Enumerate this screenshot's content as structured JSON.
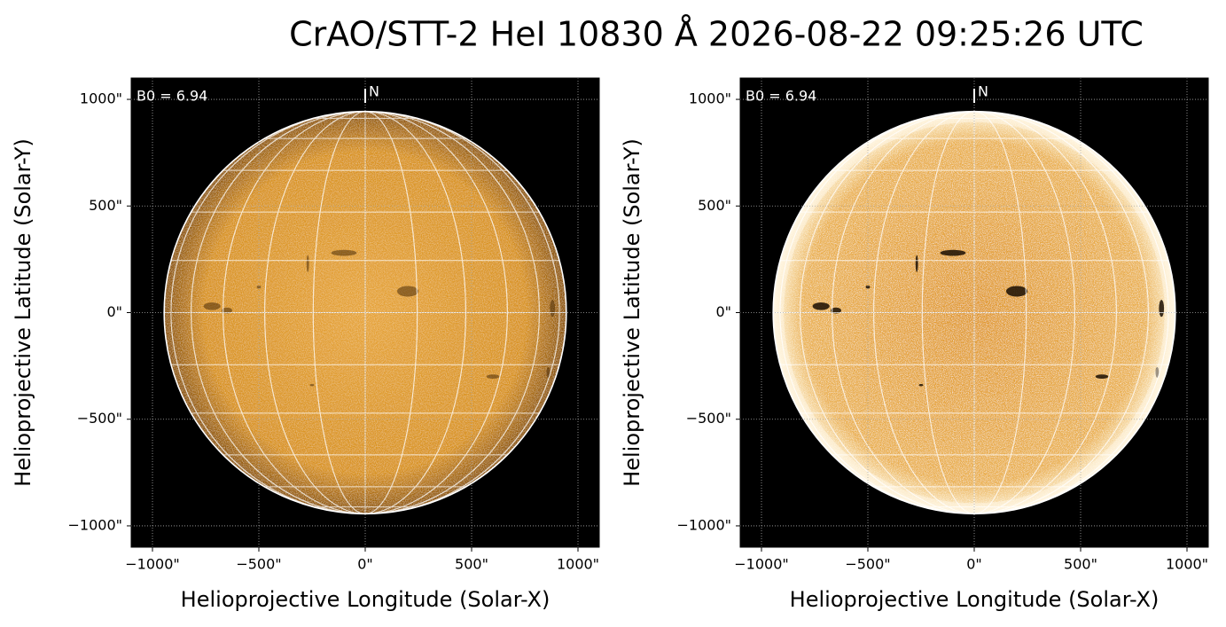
{
  "title": "CrAO/STT-2 HeI 10830 Å 2026-08-22 09:25:26 UTC",
  "chart_data": [
    {
      "type": "image",
      "xlabel": "Helioprojective Longitude (Solar-X)",
      "ylabel": "Helioprojective Latitude (Solar-Y)",
      "annotation": "B0 = 6.94",
      "north_label": "N",
      "solar_radius": 945,
      "grid": true,
      "contrast": "normal",
      "xlim": [
        -1100,
        1100
      ],
      "ylim": [
        -1100,
        1100
      ],
      "xticks": [
        {
          "value": -1000,
          "label": "−1000\""
        },
        {
          "value": -500,
          "label": "−500\""
        },
        {
          "value": 0,
          "label": "0\""
        },
        {
          "value": 500,
          "label": "500\""
        },
        {
          "value": 1000,
          "label": "1000\""
        }
      ],
      "yticks": [
        {
          "value": -1000,
          "label": "−1000\""
        },
        {
          "value": -500,
          "label": "−500\""
        },
        {
          "value": 0,
          "label": "0\""
        },
        {
          "value": 500,
          "label": "500\""
        },
        {
          "value": 1000,
          "label": "1000\""
        }
      ]
    },
    {
      "type": "image",
      "xlabel": "Helioprojective Longitude (Solar-X)",
      "ylabel": "Helioprojective Latitude (Solar-Y)",
      "annotation": "B0 = 6.94",
      "north_label": "N",
      "solar_radius": 945,
      "grid": true,
      "contrast": "high",
      "xlim": [
        -1100,
        1100
      ],
      "ylim": [
        -1100,
        1100
      ],
      "xticks": [
        {
          "value": -1000,
          "label": "−1000\""
        },
        {
          "value": -500,
          "label": "−500\""
        },
        {
          "value": 0,
          "label": "0\""
        },
        {
          "value": 500,
          "label": "500\""
        },
        {
          "value": 1000,
          "label": "1000\""
        }
      ],
      "yticks": [
        {
          "value": -1000,
          "label": "−1000\""
        },
        {
          "value": -500,
          "label": "−500\""
        },
        {
          "value": 0,
          "label": "0\""
        },
        {
          "value": 500,
          "label": "500\""
        },
        {
          "value": 1000,
          "label": "1000\""
        }
      ]
    }
  ]
}
